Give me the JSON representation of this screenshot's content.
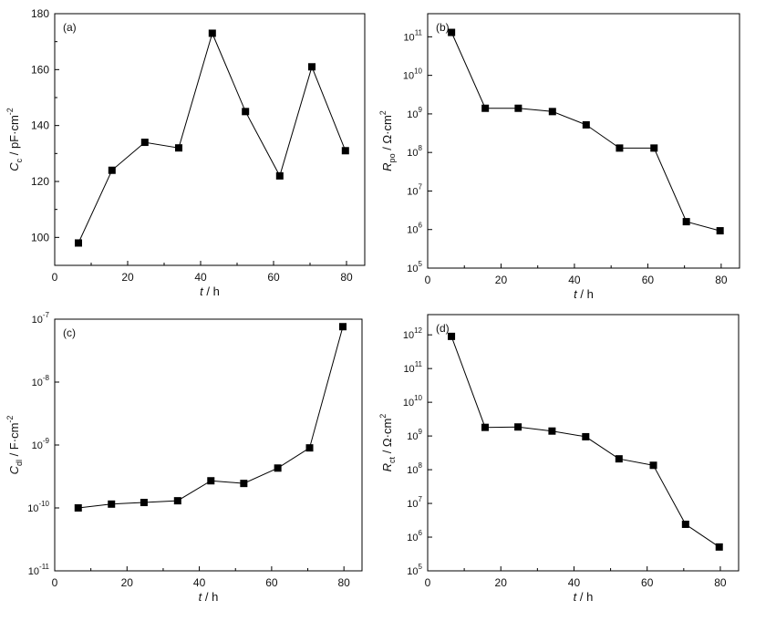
{
  "chart_data": [
    {
      "id": "a",
      "type": "line",
      "panel_label": "(a)",
      "ylabel": {
        "main": "C",
        "sub": "c",
        "rest": " / pF·cm",
        "sup": "-2"
      },
      "xlabel": {
        "main": "t",
        "rest": " / h"
      },
      "yscale": "linear",
      "xlim": [
        0,
        85
      ],
      "ylim": [
        90,
        180
      ],
      "xticks": [
        0,
        20,
        40,
        60,
        80
      ],
      "yticks": [
        100,
        120,
        140,
        160,
        180
      ],
      "x": [
        6.5,
        15.7,
        24.7,
        34.0,
        43.2,
        52.3,
        61.7,
        70.5,
        79.7
      ],
      "y": [
        98,
        124,
        134,
        132,
        173,
        145,
        122,
        161,
        131
      ]
    },
    {
      "id": "b",
      "type": "line",
      "panel_label": "(b)",
      "ylabel": {
        "main": "R",
        "sub": "po",
        "rest": " / Ω·cm",
        "sup": "2"
      },
      "xlabel": {
        "main": "t",
        "rest": " / h"
      },
      "yscale": "log",
      "xlim": [
        0,
        85
      ],
      "ylim_exp": [
        5,
        11.6
      ],
      "xticks": [
        0,
        20,
        40,
        60,
        80
      ],
      "ytick_exps": [
        5,
        6,
        7,
        8,
        9,
        10,
        11
      ],
      "x": [
        6.5,
        15.7,
        24.7,
        34.0,
        43.2,
        52.3,
        61.7,
        70.5,
        79.7
      ],
      "y": [
        130000000000.0,
        1400000000.0,
        1400000000.0,
        1150000000.0,
        520000000.0,
        130000000.0,
        130000000.0,
        1600000.0,
        930000.0
      ]
    },
    {
      "id": "c",
      "type": "line",
      "panel_label": "(c)",
      "ylabel": {
        "main": "C",
        "sub": "dl",
        "rest": " / F·cm",
        "sup": "-2"
      },
      "xlabel": {
        "main": "t",
        "rest": " / h"
      },
      "yscale": "log",
      "xlim": [
        0,
        85
      ],
      "ylim_exp": [
        -11,
        -7
      ],
      "xticks": [
        0,
        20,
        40,
        60,
        80
      ],
      "ytick_exps": [
        -11,
        -10,
        -9,
        -8,
        -7
      ],
      "x": [
        6.5,
        15.7,
        24.7,
        34.0,
        43.2,
        52.3,
        61.7,
        70.5,
        79.7
      ],
      "y": [
        1e-10,
        1.15e-10,
        1.22e-10,
        1.3e-10,
        2.7e-10,
        2.45e-10,
        4.3e-10,
        9e-10,
        7.6e-08
      ]
    },
    {
      "id": "d",
      "type": "line",
      "panel_label": "(d)",
      "ylabel": {
        "main": "R",
        "sub": "ct",
        "rest": " / Ω·cm",
        "sup": "2"
      },
      "xlabel": {
        "main": "t",
        "rest": " / h"
      },
      "yscale": "log",
      "xlim": [
        0,
        85
      ],
      "ylim_exp": [
        5,
        12.6
      ],
      "xticks": [
        0,
        20,
        40,
        60,
        80
      ],
      "ytick_exps": [
        5,
        6,
        7,
        8,
        9,
        10,
        11,
        12
      ],
      "x": [
        6.5,
        15.7,
        24.7,
        34.0,
        43.2,
        52.3,
        61.7,
        70.5,
        79.7
      ],
      "y": [
        900000000000.0,
        1800000000.0,
        1850000000.0,
        1400000000.0,
        950000000.0,
        210000000.0,
        135000000.0,
        2400000.0,
        510000.0
      ]
    }
  ]
}
